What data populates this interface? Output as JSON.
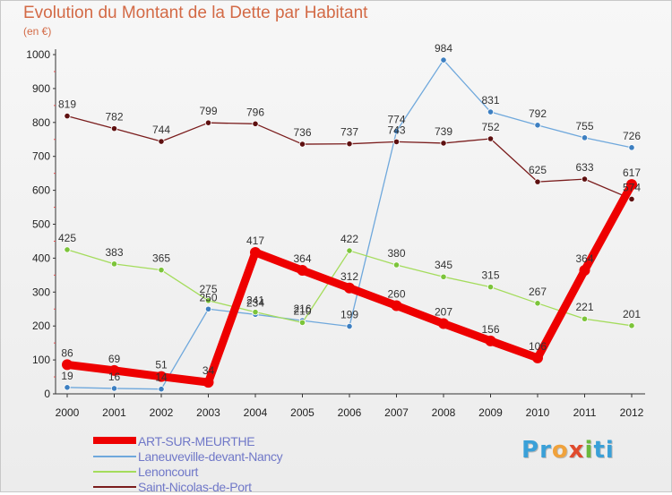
{
  "header": {
    "title": "Evolution du Montant de la Dette par Habitant",
    "subtitle": "(en €)"
  },
  "logo": {
    "letters": [
      "P",
      "r",
      "o",
      "x",
      "i",
      "t",
      "i"
    ],
    "colors": [
      "#3aa0d8",
      "#3aa0d8",
      "#f0a23c",
      "#e04b2e",
      "#6ab83d",
      "#3aa0d8",
      "#3aa0d8"
    ]
  },
  "chart_data": {
    "type": "line",
    "title": "Evolution du Montant de la Dette par Habitant",
    "subtitle": "(en €)",
    "xlabel": "",
    "ylabel": "",
    "x": [
      "2000",
      "2001",
      "2002",
      "2003",
      "2004",
      "2005",
      "2006",
      "2007",
      "2008",
      "2009",
      "2010",
      "2011",
      "2012"
    ],
    "ylim": [
      0,
      1000
    ],
    "yticks": [
      0,
      100,
      200,
      300,
      400,
      500,
      600,
      700,
      800,
      900,
      1000
    ],
    "grid": false,
    "legend_position": "bottom-left",
    "series": [
      {
        "name": "ART-SUR-MEURTHE",
        "color": "#ee0000",
        "marker": "#ee0000",
        "emphasis": true,
        "values": [
          86,
          69,
          51,
          34,
          417,
          364,
          312,
          260,
          207,
          156,
          106,
          364,
          617
        ],
        "labels": [
          "86",
          "69",
          "51",
          "34",
          "417",
          "364",
          "312",
          "260",
          "207",
          "156",
          "106",
          "364",
          "617"
        ]
      },
      {
        "name": "Laneuveville-devant-Nancy",
        "color": "#6fa8dc",
        "marker": "#3d7fc1",
        "emphasis": false,
        "values": [
          19,
          16,
          14,
          250,
          234,
          216,
          199,
          774,
          984,
          831,
          792,
          755,
          726
        ],
        "labels": [
          "19",
          "16",
          "14",
          "250",
          "234",
          "216",
          "199",
          "774",
          "984",
          "831",
          "792",
          "755",
          "726"
        ]
      },
      {
        "name": "Lenoncourt",
        "color": "#a4dc5c",
        "marker": "#7cc43a",
        "emphasis": false,
        "values": [
          425,
          383,
          365,
          275,
          241,
          210,
          422,
          380,
          345,
          315,
          267,
          221,
          201
        ],
        "labels": [
          "425",
          "383",
          "365",
          "275",
          "241",
          "210",
          "422",
          "380",
          "345",
          "315",
          "267",
          "221",
          "201"
        ]
      },
      {
        "name": "Saint-Nicolas-de-Port",
        "color": "#7a1c1c",
        "marker": "#5e1010",
        "emphasis": false,
        "values": [
          819,
          782,
          744,
          799,
          796,
          736,
          737,
          743,
          739,
          752,
          625,
          633,
          574
        ],
        "labels": [
          "819",
          "782",
          "744",
          "799",
          "796",
          "736",
          "737",
          "743",
          "739",
          "752",
          "625",
          "633",
          "574"
        ]
      }
    ]
  }
}
